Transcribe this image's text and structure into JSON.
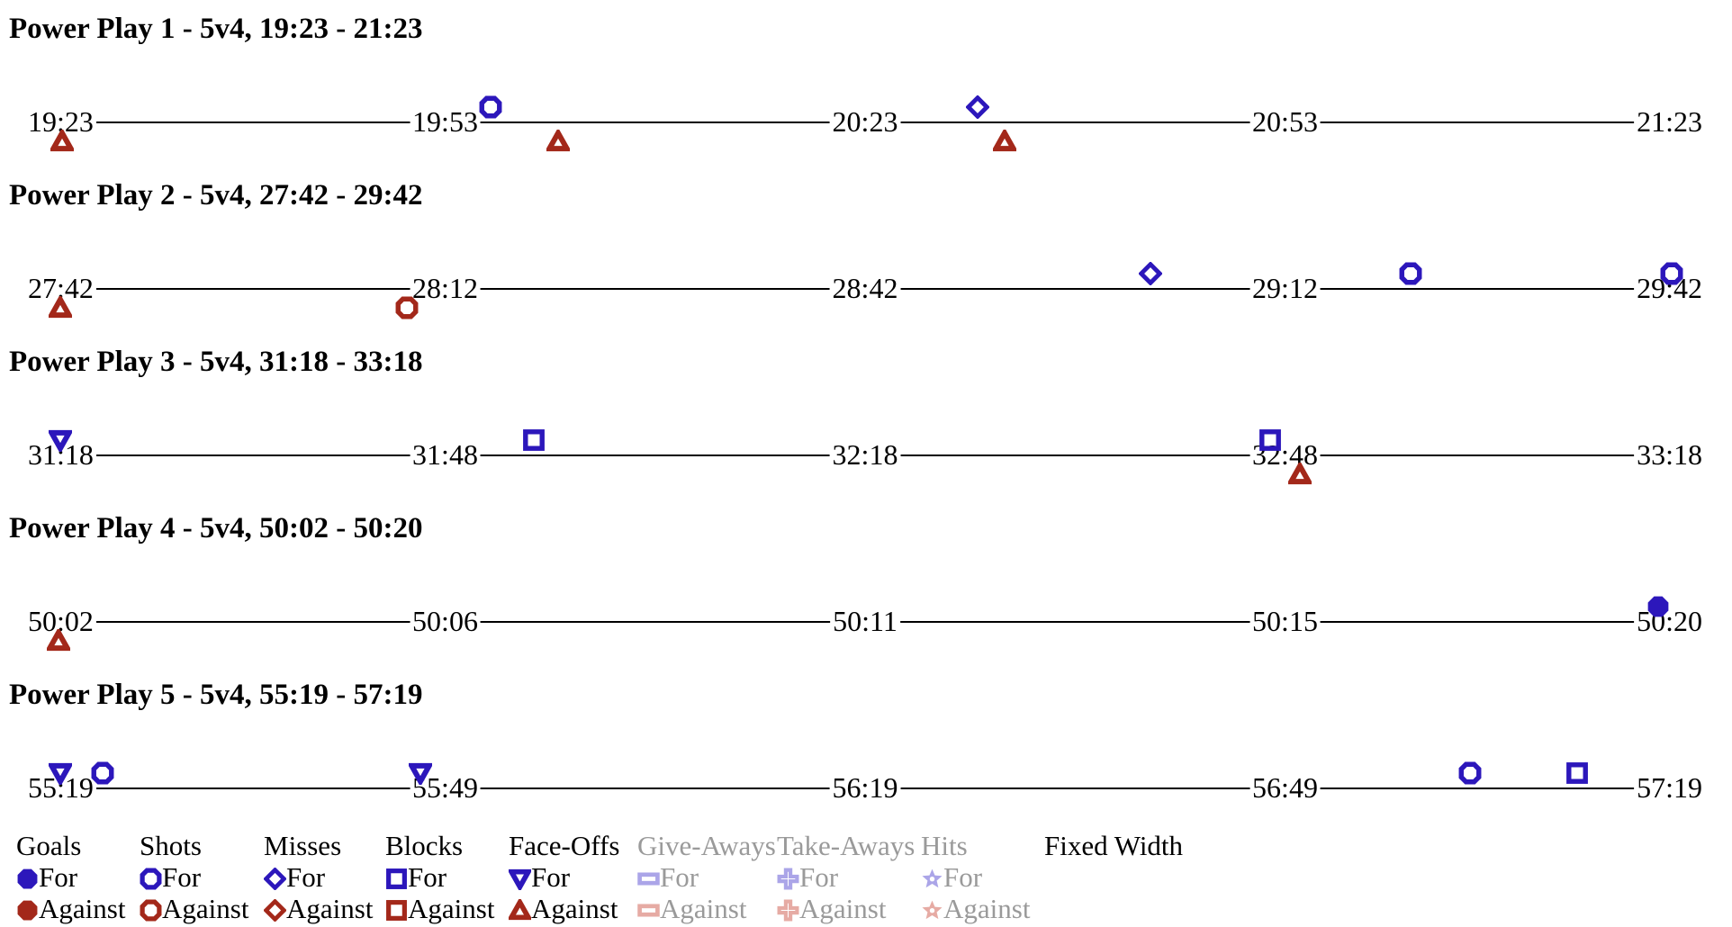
{
  "colors": {
    "for": "#2c17bb",
    "against": "#a3281a",
    "inactive_for": "#aba5e8",
    "inactive_against": "#e6aba4",
    "inactive_text": "#9a9a9a",
    "line": "#000000"
  },
  "chart_data": [
    {
      "type": "scatter",
      "subtype": "power-play-event-timeline",
      "title": "Power Play 1 - 5v4, 19:23 - 21:23",
      "x_ticks": [
        "19:23",
        "19:53",
        "20:23",
        "20:53",
        "21:23"
      ],
      "x_span_seconds": 120,
      "events": [
        {
          "time": "19:26",
          "type": "face-off",
          "team": "against",
          "side": "below",
          "pos_pct": 2.2
        },
        {
          "time": "19:56",
          "type": "shot",
          "team": "for",
          "side": "above",
          "pos_pct": 27.7
        },
        {
          "time": "20:01",
          "type": "face-off",
          "team": "against",
          "side": "below",
          "pos_pct": 31.7
        },
        {
          "time": "20:31",
          "type": "miss",
          "team": "for",
          "side": "above",
          "pos_pct": 56.7
        },
        {
          "time": "20:33",
          "type": "face-off",
          "team": "against",
          "side": "below",
          "pos_pct": 58.3
        }
      ]
    },
    {
      "type": "scatter",
      "subtype": "power-play-event-timeline",
      "title": "Power Play 2 - 5v4, 27:42 - 29:42",
      "x_ticks": [
        "27:42",
        "28:12",
        "28:42",
        "29:12",
        "29:42"
      ],
      "x_span_seconds": 120,
      "events": [
        {
          "time": "27:45",
          "type": "face-off",
          "team": "against",
          "side": "below",
          "pos_pct": 2.1
        },
        {
          "time": "28:09",
          "type": "shot",
          "team": "against",
          "side": "below",
          "pos_pct": 22.7
        },
        {
          "time": "29:02",
          "type": "miss",
          "team": "for",
          "side": "above",
          "pos_pct": 67.0
        },
        {
          "time": "29:21",
          "type": "shot",
          "team": "for",
          "side": "above",
          "pos_pct": 82.5
        },
        {
          "time": "29:40",
          "type": "shot",
          "team": "for",
          "side": "above",
          "pos_pct": 98.0
        }
      ]
    },
    {
      "type": "scatter",
      "subtype": "power-play-event-timeline",
      "title": "Power Play 3 - 5v4, 31:18 - 33:18",
      "x_ticks": [
        "31:18",
        "31:48",
        "32:18",
        "32:48",
        "33:18"
      ],
      "x_span_seconds": 120,
      "events": [
        {
          "time": "31:21",
          "type": "face-off",
          "team": "for",
          "side": "above",
          "pos_pct": 2.1
        },
        {
          "time": "31:54",
          "type": "block",
          "team": "for",
          "side": "above",
          "pos_pct": 30.3
        },
        {
          "time": "32:47",
          "type": "block",
          "team": "for",
          "side": "above",
          "pos_pct": 74.1
        },
        {
          "time": "32:49",
          "type": "face-off",
          "team": "against",
          "side": "below",
          "pos_pct": 75.9
        }
      ]
    },
    {
      "type": "scatter",
      "subtype": "power-play-event-timeline",
      "title": "Power Play 4 - 5v4, 50:02 - 50:20",
      "x_ticks": [
        "50:02",
        "50:06",
        "50:11",
        "50:15",
        "50:20"
      ],
      "x_span_seconds": 18,
      "events": [
        {
          "time": "50:02",
          "type": "face-off",
          "team": "against",
          "side": "below",
          "pos_pct": 2.0
        },
        {
          "time": "50:20",
          "type": "goal",
          "team": "for",
          "side": "above",
          "pos_pct": 97.2
        }
      ]
    },
    {
      "type": "scatter",
      "subtype": "power-play-event-timeline",
      "title": "Power Play 5 - 5v4, 55:19 - 57:19",
      "x_ticks": [
        "55:19",
        "55:49",
        "56:19",
        "56:49",
        "57:19"
      ],
      "x_span_seconds": 120,
      "events": [
        {
          "time": "55:21",
          "type": "face-off",
          "team": "for",
          "side": "above",
          "pos_pct": 2.1
        },
        {
          "time": "55:24",
          "type": "shot",
          "team": "for",
          "side": "above",
          "pos_pct": 4.6
        },
        {
          "time": "55:47",
          "type": "face-off",
          "team": "for",
          "side": "above",
          "pos_pct": 23.5
        },
        {
          "time": "57:02",
          "type": "shot",
          "team": "for",
          "side": "above",
          "pos_pct": 86.0
        },
        {
          "time": "57:11",
          "type": "block",
          "team": "for",
          "side": "above",
          "pos_pct": 92.4
        }
      ]
    }
  ],
  "legend": {
    "for_label": "For",
    "against_label": "Against",
    "groups": [
      {
        "label": "Goals",
        "marker": "goal",
        "active": true
      },
      {
        "label": "Shots",
        "marker": "shot",
        "active": true
      },
      {
        "label": "Misses",
        "marker": "miss",
        "active": true
      },
      {
        "label": "Blocks",
        "marker": "block",
        "active": true
      },
      {
        "label": "Face-Offs",
        "marker": "face-off",
        "active": true
      },
      {
        "label": "Give-Aways",
        "marker": "give-away",
        "active": false
      },
      {
        "label": "Take-Aways",
        "marker": "take-away",
        "active": false
      },
      {
        "label": "Hits",
        "marker": "hit",
        "active": false
      },
      {
        "label": "Fixed Width",
        "marker": null,
        "active": true
      }
    ]
  }
}
